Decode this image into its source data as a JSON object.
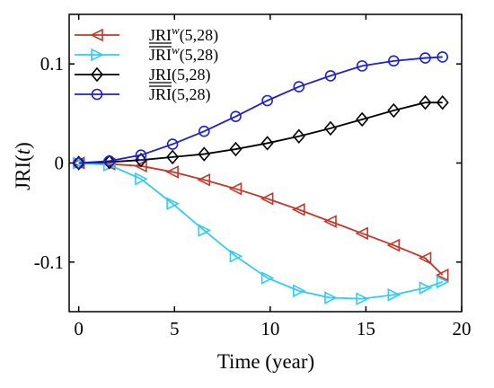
{
  "chart_data": {
    "type": "line",
    "xlabel": "Time (year)",
    "ylabel_main": "JRI(",
    "ylabel_var": "t",
    "ylabel_close": ")",
    "xlim": [
      -0.5,
      20
    ],
    "ylim": [
      -0.15,
      0.15
    ],
    "x_ticks": [
      0,
      5,
      10,
      15,
      20
    ],
    "x_tick_labels": [
      "0",
      "5",
      "10",
      "15",
      "20"
    ],
    "y_ticks": [
      -0.1,
      0,
      0.1
    ],
    "y_tick_labels": [
      "-0.1",
      "0",
      "0.1"
    ],
    "grid": false,
    "legend_position": "top-left",
    "series": [
      {
        "name": "JRI^w(5,28) lower",
        "legend_base": "JRI",
        "legend_sup": "w",
        "legend_args": "(5,28)",
        "legend_bar": "under",
        "color": "#c0392b",
        "marker": "triangle-left",
        "x": [
          0,
          1.6,
          3.25,
          4.9,
          6.55,
          8.2,
          9.85,
          11.5,
          13.15,
          14.8,
          16.45,
          18.1,
          19
        ],
        "y": [
          0,
          -0.001,
          -0.003,
          -0.009,
          -0.017,
          -0.026,
          -0.036,
          -0.047,
          -0.059,
          -0.071,
          -0.083,
          -0.096,
          -0.113
        ]
      },
      {
        "name": "JRI^w(5,28) upper",
        "legend_base": "JRI",
        "legend_sup": "w",
        "legend_args": "(5,28)",
        "legend_bar": "over",
        "color": "#33ccee",
        "marker": "triangle-right",
        "x": [
          0,
          1.6,
          3.25,
          4.9,
          6.55,
          8.2,
          9.85,
          11.5,
          13.15,
          14.8,
          16.45,
          18.1,
          19
        ],
        "y": [
          0,
          -0.002,
          -0.016,
          -0.041,
          -0.068,
          -0.094,
          -0.116,
          -0.129,
          -0.136,
          -0.137,
          -0.133,
          -0.126,
          -0.12
        ]
      },
      {
        "name": "JRI(5,28) lower",
        "legend_base": "JRI",
        "legend_sup": "",
        "legend_args": "(5,28)",
        "legend_bar": "under",
        "color": "#000000",
        "marker": "diamond",
        "x": [
          0,
          1.6,
          3.25,
          4.9,
          6.55,
          8.2,
          9.85,
          11.5,
          13.15,
          14.8,
          16.45,
          18.1,
          19
        ],
        "y": [
          0,
          0.001,
          0.003,
          0.006,
          0.009,
          0.014,
          0.02,
          0.027,
          0.035,
          0.044,
          0.053,
          0.061,
          0.061
        ]
      },
      {
        "name": "JRI(5,28) upper",
        "legend_base": "JRI",
        "legend_sup": "",
        "legend_args": "(5,28)",
        "legend_bar": "over",
        "color": "#1f1fc8",
        "marker": "circle",
        "x": [
          0,
          1.6,
          3.25,
          4.9,
          6.55,
          8.2,
          9.85,
          11.5,
          13.15,
          14.8,
          16.45,
          18.1,
          19
        ],
        "y": [
          0,
          0.002,
          0.008,
          0.019,
          0.032,
          0.047,
          0.063,
          0.077,
          0.088,
          0.098,
          0.103,
          0.106,
          0.107
        ]
      }
    ]
  }
}
